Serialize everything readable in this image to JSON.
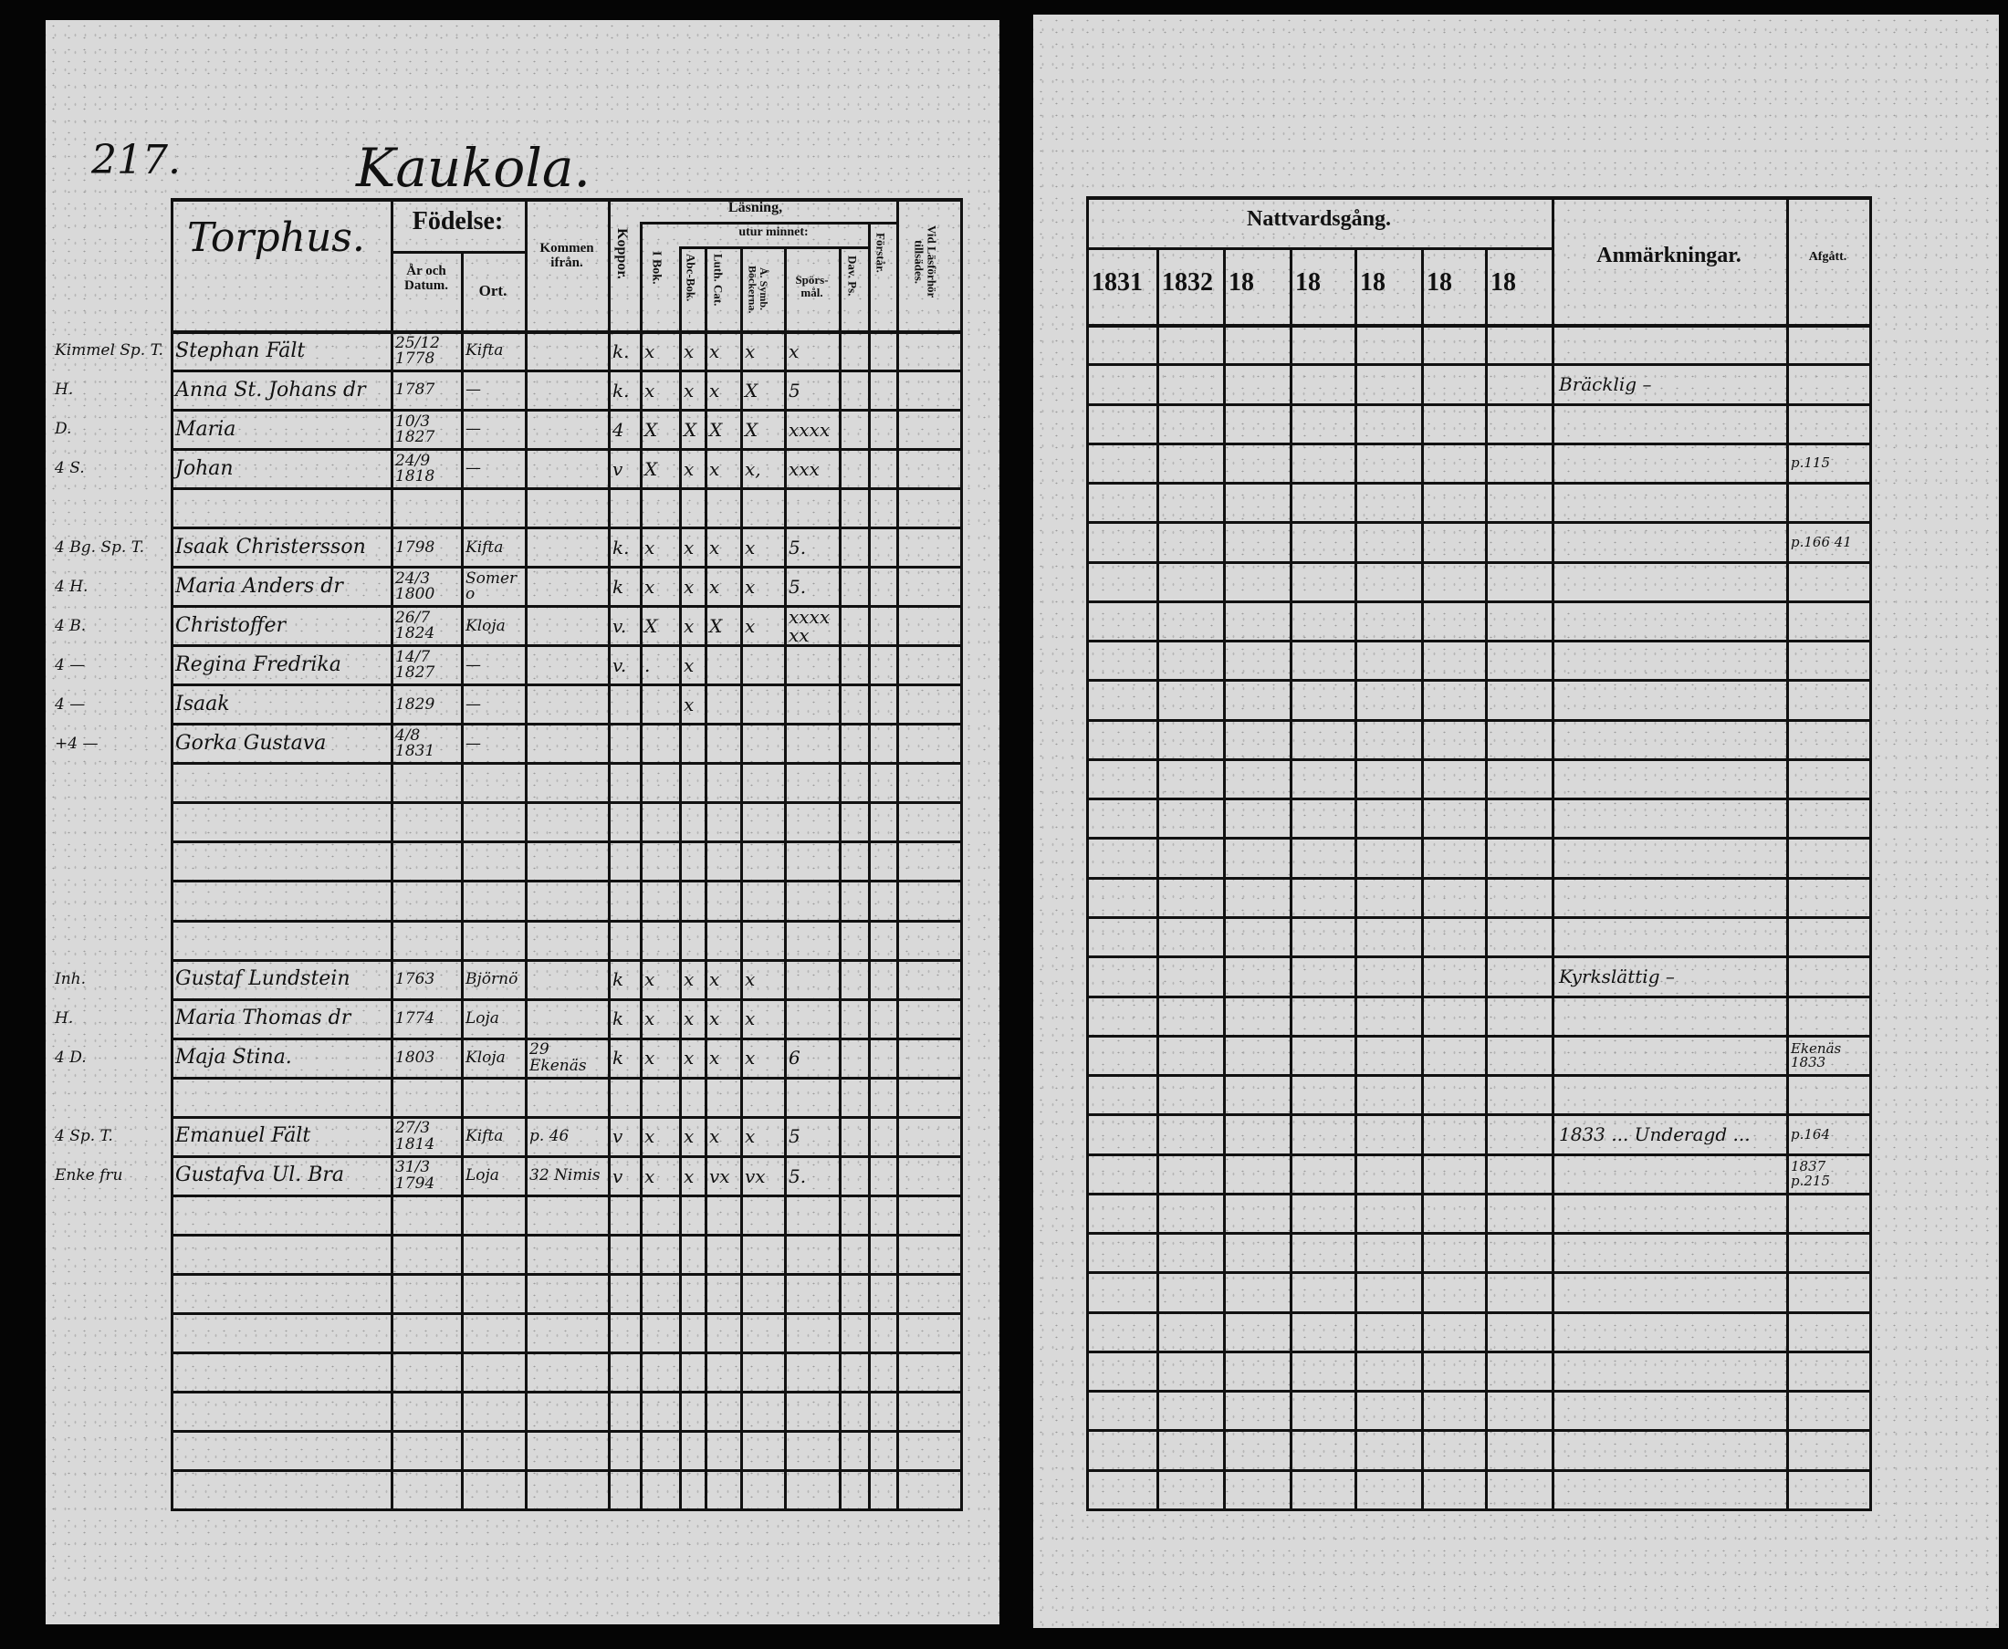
{
  "document": {
    "page_number": "217.",
    "village": "Kaukola.",
    "farm": "Torphus."
  },
  "left_header": {
    "fodelse": "Födelse:",
    "ar_och_datum": "År och Datum.",
    "ort": "Ort.",
    "kommen_ifran": "Kommen ifrån.",
    "koppor": "Koppor.",
    "lasning": "Läsning,",
    "utur_minnet": "utur minnet:",
    "i_bok": "I Bok.",
    "abc_bok": "Abc-Bok.",
    "luth_cat": "Luth. Cat.",
    "symb": "Å. Symb. Böckerna.",
    "sporsmal": "Spörs-mål.",
    "dav_ps": "Dav. Ps.",
    "forstar": "Förstår.",
    "lasforhor": "Vid Läsförhör tillsädes."
  },
  "right_header": {
    "nattvardsgang": "Nattvardsgång.",
    "years": [
      "1831",
      "1832",
      "18",
      "18",
      "18",
      "18",
      "18"
    ],
    "anmarkningar": "Anmärkningar.",
    "afgatt": "Afgått."
  },
  "left_rows": [
    {
      "row": 0,
      "prefix": "Kimmel Sp. T.",
      "name": "Stephan Fält",
      "birth_date": "25/12 1778",
      "birth_place": "Kifta",
      "koppor": "k.",
      "i_bok": "x",
      "abc_bok": "x",
      "luth_cat": "x",
      "symb": "x",
      "sporsmal": "x"
    },
    {
      "row": 1,
      "prefix": "H.",
      "name": "Anna St. Johans dr",
      "birth_date": "1787",
      "birth_place": "—",
      "koppor": "k.",
      "i_bok": "x",
      "abc_bok": "x",
      "luth_cat": "x",
      "symb": "X",
      "sporsmal": "5"
    },
    {
      "row": 2,
      "prefix": "D.",
      "name": "Maria",
      "birth_date": "10/3 1827",
      "birth_place": "—",
      "koppor": "4",
      "i_bok": "X",
      "abc_bok": "X",
      "luth_cat": "X",
      "symb": "X",
      "sporsmal": "xxxx"
    },
    {
      "row": 3,
      "prefix": "4 S.",
      "name": "Johan",
      "birth_date": "24/9 1818",
      "birth_place": "—",
      "koppor": "v",
      "i_bok": "X",
      "abc_bok": "x",
      "luth_cat": "x",
      "symb": "x,",
      "sporsmal": "xxx"
    },
    {
      "row": 5,
      "prefix": "4 Bg. Sp. T.",
      "name": "Isaak Christersson",
      "birth_date": "1798",
      "birth_place": "Kifta",
      "koppor": "k.",
      "i_bok": "x",
      "abc_bok": "x",
      "luth_cat": "x",
      "symb": "x",
      "sporsmal": "5."
    },
    {
      "row": 6,
      "prefix": "4 H.",
      "name": "Maria Anders dr",
      "birth_date": "24/3 1800",
      "birth_place": "Somero",
      "koppor": "k",
      "i_bok": "x",
      "abc_bok": "x",
      "luth_cat": "x",
      "symb": "x",
      "sporsmal": "5."
    },
    {
      "row": 7,
      "prefix": "4 B.",
      "name": "Christoffer",
      "birth_date": "26/7 1824",
      "birth_place": "Kloja",
      "koppor": "v.",
      "i_bok": "X",
      "abc_bok": "x",
      "luth_cat": "X",
      "symb": "x",
      "sporsmal": "xxxxxx"
    },
    {
      "row": 8,
      "prefix": "4 —",
      "name": "Regina Fredrika",
      "birth_date": "14/7 1827",
      "birth_place": "—",
      "koppor": "v.",
      "i_bok": ".",
      "abc_bok": "x"
    },
    {
      "row": 9,
      "prefix": "4 —",
      "name": "Isaak",
      "birth_date": "1829",
      "birth_place": "—",
      "abc_bok": "x"
    },
    {
      "row": 10,
      "prefix": "+4 —",
      "name": "Gorka Gustava",
      "birth_date": "4/8 1831",
      "birth_place": "—"
    },
    {
      "row": 16,
      "prefix": "Inh.",
      "name": "Gustaf Lundstein",
      "birth_date": "1763",
      "birth_place": "Björnö",
      "koppor": "k",
      "i_bok": "x",
      "abc_bok": "x",
      "luth_cat": "x",
      "symb": "x"
    },
    {
      "row": 17,
      "prefix": "H.",
      "name": "Maria Thomas dr",
      "birth_date": "1774",
      "birth_place": "Loja",
      "koppor": "k",
      "i_bok": "x",
      "abc_bok": "x",
      "luth_cat": "x",
      "symb": "x"
    },
    {
      "row": 18,
      "prefix": "4 D.",
      "name": "Maja Stina.",
      "birth_date": "1803",
      "birth_place": "Kloja",
      "came_from": "29 Ekenäs",
      "koppor": "k",
      "i_bok": "x",
      "abc_bok": "x",
      "luth_cat": "x",
      "symb": "x",
      "sporsmal": "6"
    },
    {
      "row": 20,
      "prefix": "4 Sp. T.",
      "name": "Emanuel Fält",
      "birth_date": "27/3 1814",
      "birth_place": "Kifta",
      "came_from": "p. 46",
      "koppor": "v",
      "i_bok": "x",
      "abc_bok": "x",
      "luth_cat": "x",
      "symb": "x",
      "sporsmal": "5"
    },
    {
      "row": 21,
      "prefix": "Enke fru",
      "name": "Gustafva Ul. Bra",
      "birth_date": "31/3 1794",
      "birth_place": "Loja",
      "came_from": "32 Nimis",
      "koppor": "v",
      "i_bok": "x",
      "abc_bok": "x",
      "luth_cat": "vx",
      "symb": "vx",
      "sporsmal": "5."
    }
  ],
  "right_rows": [
    {
      "row": 1,
      "anm": "Bräcklig –"
    },
    {
      "row": 3,
      "afgatt": "p.115"
    },
    {
      "row": 5,
      "afgatt": "p.166 41"
    },
    {
      "row": 16,
      "anm": "Kyrkslättig –"
    },
    {
      "row": 18,
      "afgatt": "Ekenäs 1833"
    },
    {
      "row": 20,
      "anm": "1833 ... Underagd ...",
      "afgatt": "p.164"
    },
    {
      "row": 21,
      "afgatt": "1837 p.215"
    }
  ]
}
